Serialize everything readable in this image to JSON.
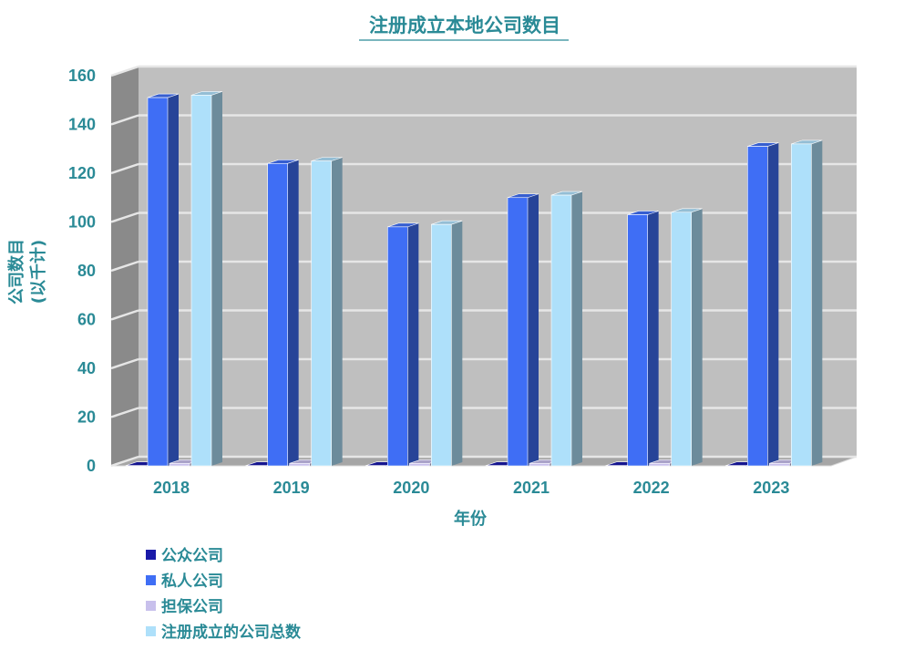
{
  "chart_data": {
    "type": "bar",
    "title": "注册成立本地公司数目",
    "xlabel": "年份",
    "ylabel": "公司数目",
    "ylabel_unit": "(以千计)",
    "categories": [
      "2018",
      "2019",
      "2020",
      "2021",
      "2022",
      "2023"
    ],
    "ylim": [
      0,
      160
    ],
    "yticks": [
      0,
      20,
      40,
      60,
      80,
      100,
      120,
      140,
      160
    ],
    "grid": true,
    "legend_position": "bottom-left",
    "series": [
      {
        "name": "公众公司",
        "color": "#1a1aa8",
        "values": [
          0.1,
          0.1,
          0.1,
          0.1,
          0.1,
          0.1
        ]
      },
      {
        "name": "私人公司",
        "color": "#3f6ef5",
        "values": [
          151,
          124,
          98,
          110,
          103,
          131
        ]
      },
      {
        "name": "担保公司",
        "color": "#c8c0ec",
        "values": [
          1,
          1,
          1,
          1,
          1,
          1
        ]
      },
      {
        "name": "注册成立的公司总数",
        "color": "#aee0fa",
        "values": [
          152,
          125,
          99,
          111,
          104,
          132
        ]
      }
    ]
  }
}
